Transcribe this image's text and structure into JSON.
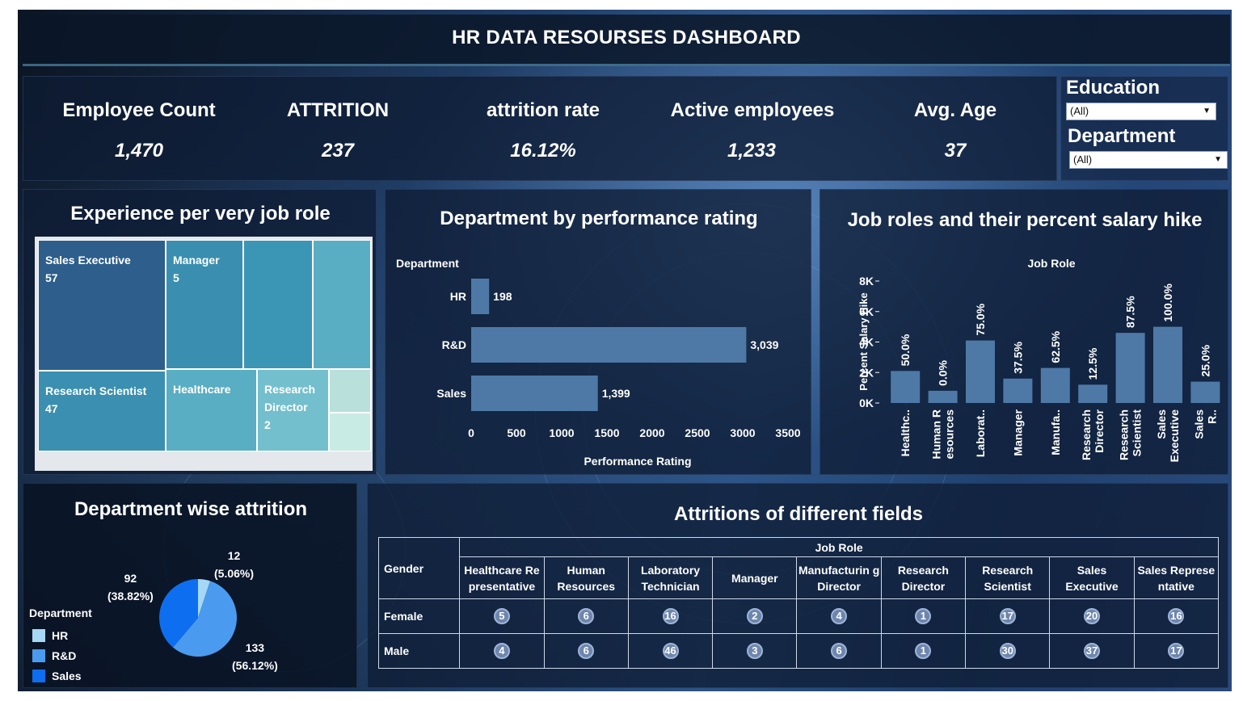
{
  "title": "HR DATA RESOURSES DASHBOARD",
  "kpis": [
    {
      "label": "Employee Count",
      "value": "1,470"
    },
    {
      "label": "ATTRITION",
      "value": "237"
    },
    {
      "label": "attrition rate",
      "value": "16.12%"
    },
    {
      "label": "Active employees",
      "value": "1,233"
    },
    {
      "label": "Avg. Age",
      "value": "37"
    }
  ],
  "filters": {
    "education": {
      "label": "Education",
      "value": "(All)"
    },
    "department": {
      "label": "Department",
      "value": "(All)"
    }
  },
  "treemap": {
    "title": "Experience per very job role",
    "cells": [
      {
        "role": "Sales Executive",
        "value": "57",
        "color": "#2d5e8c"
      },
      {
        "role": "Manager",
        "value": "5",
        "color": "#3a8fb0"
      },
      {
        "role": "",
        "value": "",
        "color": "#3b96b5"
      },
      {
        "role": "",
        "value": "",
        "color": "#5aaec3"
      },
      {
        "role": "Research Scientist",
        "value": "47",
        "color": "#3b8fb0"
      },
      {
        "role": "Healthcare",
        "value": "",
        "color": "#5aaec3"
      },
      {
        "role": "Research Director",
        "value": "2",
        "color": "#74bfcd"
      },
      {
        "role": "",
        "value": "",
        "color": "#b9e0db"
      },
      {
        "role": "",
        "value": "",
        "color": "#c8ebe3"
      }
    ]
  },
  "dept_perf": {
    "title": "Department by performance rating",
    "header": "Department",
    "xlabel": "Performance Rating",
    "bar_color": "#4e79a7"
  },
  "salary_hike": {
    "title": "Job roles and their percent salary hike",
    "header": "Job Role",
    "ylabel": "Percent Salary Hike",
    "bar_color": "#4e79a7"
  },
  "attrition_pie": {
    "title": "Department wise attrition",
    "legend_title": "Department",
    "labels": [
      {
        "count": "12",
        "pct": "(5.06%)"
      },
      {
        "count": "133",
        "pct": "(56.12%)"
      },
      {
        "count": "92",
        "pct": "(38.82%)"
      }
    ]
  },
  "attrition_table": {
    "title": "Attritions of different fields",
    "row_header": "Gender",
    "col_header": "Job Role",
    "columns": [
      "Healthcare Re presentative",
      "Human Resources",
      "Laboratory Technician",
      "Manager",
      "Manufacturin g Director",
      "Research Director",
      "Research Scientist",
      "Sales Executive",
      "Sales Represe ntative"
    ],
    "rows": [
      {
        "gender": "Female",
        "values": [
          "5",
          "6",
          "16",
          "2",
          "4",
          "1",
          "17",
          "20",
          "16"
        ]
      },
      {
        "gender": "Male",
        "values": [
          "4",
          "6",
          "46",
          "3",
          "6",
          "1",
          "30",
          "37",
          "17"
        ]
      }
    ]
  },
  "chart_data": [
    {
      "type": "bar",
      "orientation": "horizontal",
      "title": "Department by performance rating",
      "xlabel": "Performance Rating",
      "ylabel": "Department",
      "categories": [
        "HR",
        "R&D",
        "Sales"
      ],
      "values": [
        198,
        3039,
        1399
      ],
      "value_labels": [
        "198",
        "3,039",
        "1,399"
      ],
      "xlim": [
        0,
        3500
      ],
      "xticks": [
        "0",
        "500",
        "1000",
        "1500",
        "2000",
        "2500",
        "3000",
        "3500"
      ],
      "grid": false
    },
    {
      "type": "bar",
      "title": "Job roles and their percent salary hike",
      "xlabel": "Job Role",
      "ylabel": "Percent Salary Hike",
      "categories": [
        "Healthc..",
        "Human R esources",
        "Laborat..",
        "Manager",
        "Manufa..",
        "Research Director",
        "Research Scientist",
        "Sales Executive",
        "Sales R.."
      ],
      "values": [
        2100,
        800,
        4100,
        1600,
        2300,
        1200,
        4600,
        5000,
        1400
      ],
      "value_labels": [
        "50.0%",
        "0.0%",
        "75.0%",
        "37.5%",
        "62.5%",
        "12.5%",
        "87.5%",
        "100.0%",
        "25.0%"
      ],
      "ylim": [
        0,
        8000
      ],
      "yticks": [
        "0K",
        "2K",
        "4K",
        "6K",
        "8K"
      ],
      "grid": false
    },
    {
      "type": "pie",
      "title": "Department wise attrition",
      "categories": [
        "HR",
        "R&D",
        "Sales"
      ],
      "values": [
        12,
        133,
        92
      ],
      "colors": [
        "#a6d8f5",
        "#4a9bef",
        "#0d6ef0"
      ],
      "legend": "left"
    }
  ]
}
